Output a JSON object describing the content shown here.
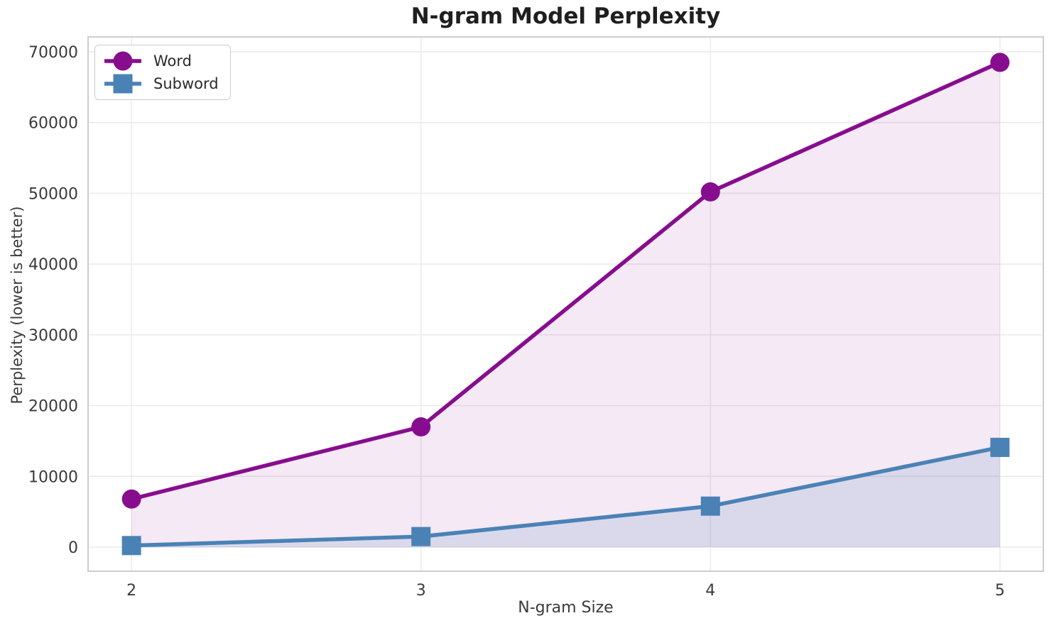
{
  "chart_data": {
    "type": "line",
    "title": "N-gram Model Perplexity",
    "xlabel": "N-gram Size",
    "ylabel": "Perplexity (lower is better)",
    "x": [
      2,
      3,
      4,
      5
    ],
    "series": [
      {
        "name": "Word",
        "values": [
          6800,
          17000,
          50200,
          68500
        ],
        "color": "#870d8e",
        "marker": "circle",
        "fill_opacity": 0.09
      },
      {
        "name": "Subword",
        "values": [
          230,
          1500,
          5800,
          14100
        ],
        "color": "#4a82b6",
        "marker": "square",
        "fill_opacity": 0.15
      }
    ],
    "xticks": [
      2,
      3,
      4,
      5
    ],
    "yticks": [
      0,
      10000,
      20000,
      30000,
      40000,
      50000,
      60000,
      70000
    ],
    "xlim": [
      1.85,
      5.15
    ],
    "ylim": [
      -3400,
      72100
    ],
    "grid": true,
    "area_fill_to_y": 0,
    "legend_position": "upper left",
    "colors": {
      "grid": "#ebebeb",
      "spine": "#cdcdcd",
      "tick_text": "#3a3a3a",
      "title_text": "#1f1f1f",
      "background": "#ffffff"
    }
  }
}
